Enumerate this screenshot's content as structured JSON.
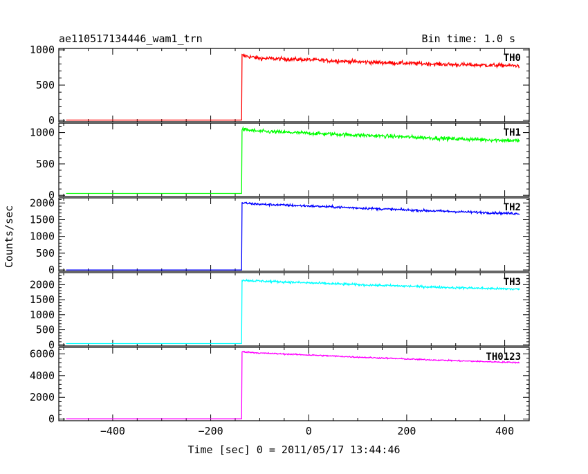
{
  "header": {
    "title": "ae110517134446_wam1_trn",
    "bin_time": "Bin time: 1.0 s"
  },
  "axes": {
    "xlabel": "Time [sec] 0 = 2011/05/17 13:44:46",
    "ylabel": "Counts/sec"
  },
  "chart_data": {
    "type": "line",
    "title": "ae110517134446_wam1_trn",
    "subtitle": "Bin time: 1.0 s",
    "xlabel": "Time [sec] 0 = 2011/05/17 13:44:46",
    "ylabel": "Counts/sec",
    "xlim": [
      -510,
      450
    ],
    "xticks": [
      -400,
      -200,
      0,
      200,
      400
    ],
    "xtick_labels": [
      "−400",
      "−200",
      "0",
      "200",
      "400"
    ],
    "grid": false,
    "panels": [
      {
        "name": "TH0",
        "color": "#ff0000",
        "ylim": [
          -20,
          1020
        ],
        "yticks": [
          0,
          500,
          1000
        ],
        "x": [
          -495,
          -137,
          -136,
          -100,
          0,
          100,
          200,
          300,
          430
        ],
        "values": [
          5,
          5,
          920,
          880,
          860,
          830,
          810,
          790,
          775
        ],
        "noise": 28
      },
      {
        "name": "TH1",
        "color": "#00ff00",
        "ylim": [
          -20,
          1150
        ],
        "yticks": [
          0,
          500,
          1000
        ],
        "x": [
          -495,
          -137,
          -136,
          -100,
          0,
          100,
          200,
          300,
          430
        ],
        "values": [
          30,
          30,
          1050,
          1020,
          990,
          960,
          930,
          900,
          870
        ],
        "noise": 30
      },
      {
        "name": "TH2",
        "color": "#0000ff",
        "ylim": [
          -40,
          2150
        ],
        "yticks": [
          0,
          500,
          1000,
          1500,
          2000
        ],
        "x": [
          -495,
          -137,
          -136,
          -100,
          0,
          100,
          200,
          300,
          430
        ],
        "values": [
          0,
          0,
          2000,
          1960,
          1910,
          1850,
          1790,
          1740,
          1680
        ],
        "noise": 35
      },
      {
        "name": "TH3",
        "color": "#00ffff",
        "ylim": [
          -40,
          2400
        ],
        "yticks": [
          0,
          500,
          1000,
          1500,
          2000
        ],
        "x": [
          -495,
          -137,
          -136,
          -100,
          0,
          100,
          200,
          300,
          430
        ],
        "values": [
          40,
          40,
          2150,
          2120,
          2060,
          2000,
          1950,
          1900,
          1850
        ],
        "noise": 38
      },
      {
        "name": "TH0123",
        "color": "#ff00ff",
        "ylim": [
          -150,
          6600
        ],
        "yticks": [
          0,
          2000,
          4000,
          6000
        ],
        "x": [
          -495,
          -137,
          -136,
          -100,
          0,
          100,
          200,
          300,
          430
        ],
        "values": [
          20,
          20,
          6200,
          6080,
          5900,
          5700,
          5530,
          5370,
          5200
        ],
        "noise": 60
      }
    ]
  }
}
